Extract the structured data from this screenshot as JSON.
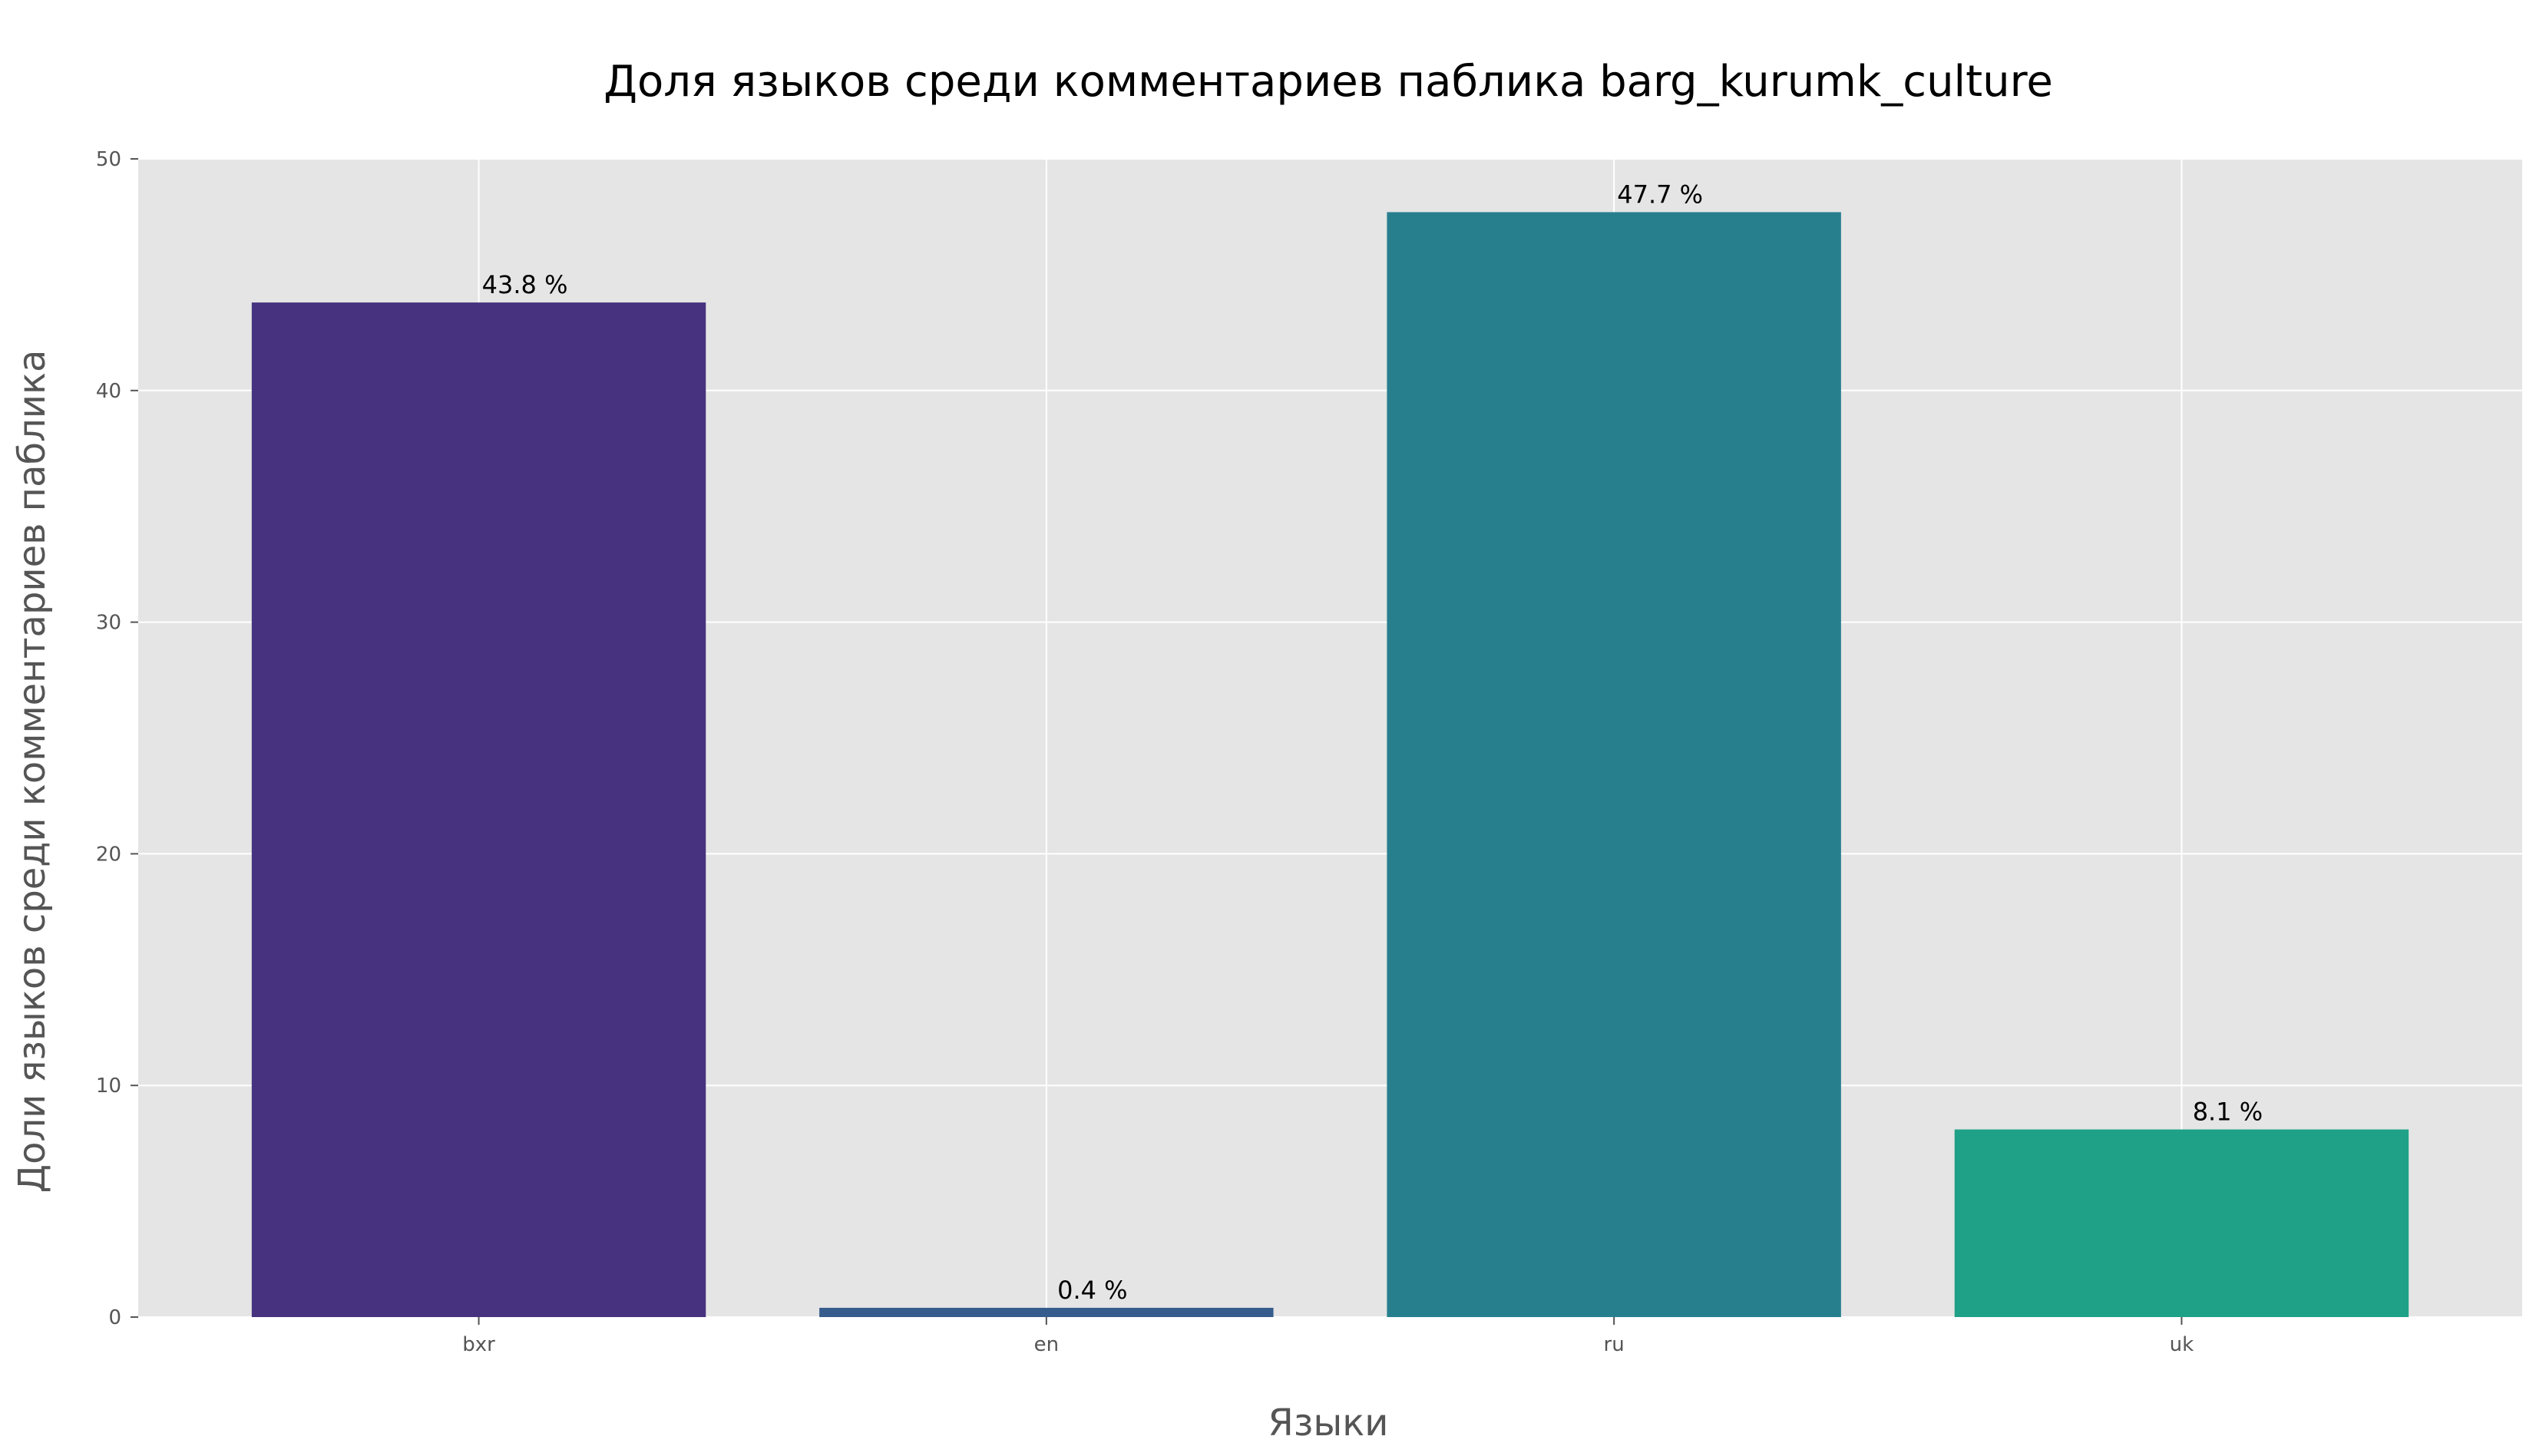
{
  "chart_data": {
    "type": "bar",
    "title": "Доля языков среди комментариев паблика barg_kurumk_culture",
    "xlabel": "Языки",
    "ylabel": "Доли языков среди комментариев паблика",
    "categories": [
      "bxr",
      "en",
      "ru",
      "uk"
    ],
    "values": [
      43.8,
      0.4,
      47.7,
      8.1
    ],
    "value_labels": [
      "43.8 %",
      "0.4 %",
      "47.7 %",
      "8.1 %"
    ],
    "colors": [
      "#46327e",
      "#365c8d",
      "#277f8e",
      "#1fa187"
    ],
    "ylim": [
      0,
      50
    ],
    "yticks": [
      0,
      10,
      20,
      30,
      40,
      50
    ],
    "grid": true,
    "background": "#e5e5e5",
    "grid_color": "#ffffff"
  }
}
